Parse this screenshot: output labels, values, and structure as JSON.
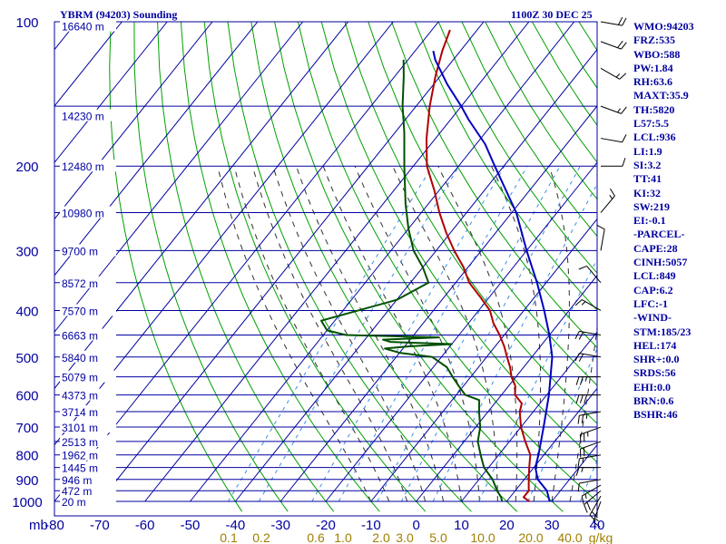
{
  "header": {
    "station": "YBRM (94203) Sounding",
    "time": "1100Z 30 DEC 25"
  },
  "colors": {
    "background": "#ffffff",
    "grid": "#0000a0",
    "dry_adiabat": "#00a000",
    "moist_adiabat": "#303030",
    "mixing_ratio": "#3a8ee6",
    "temperature": "#b00000",
    "dewpoint": "#005000",
    "parcel": "#0000c0",
    "wind": "#000000"
  },
  "chart_data": {
    "type": "line",
    "title": "YBRM (94203) Sounding",
    "subtitle": "1100Z 30 DEC 25",
    "y_axis": {
      "label": "mb",
      "scale": "log",
      "range": [
        1000,
        100
      ],
      "ticks": [
        100,
        200,
        300,
        400,
        500,
        600,
        700,
        800,
        900,
        1000
      ]
    },
    "x_axis": {
      "label": "",
      "range": [
        -80,
        40
      ],
      "skew": true,
      "ticks": [
        -80,
        -70,
        -60,
        -50,
        -40,
        -30,
        -20,
        -10,
        0,
        10,
        20,
        30,
        40
      ]
    },
    "mixing_ratio_labels": [
      "0.1",
      "0.2",
      "0.6",
      "1.0",
      "2.0",
      "3.0",
      "5.0",
      "10.0",
      "20.0",
      "40.0",
      "g/kg"
    ],
    "height_labels": [
      {
        "p": 102,
        "label": "16640 m"
      },
      {
        "p": 157,
        "label": "14230 m"
      },
      {
        "p": 200,
        "label": "12480 m"
      },
      {
        "p": 250,
        "label": "10980 m"
      },
      {
        "p": 300,
        "label": "9700 m"
      },
      {
        "p": 350,
        "label": "8572 m"
      },
      {
        "p": 400,
        "label": "7570 m"
      },
      {
        "p": 450,
        "label": "6663 m"
      },
      {
        "p": 500,
        "label": "5840 m"
      },
      {
        "p": 550,
        "label": "5079 m"
      },
      {
        "p": 600,
        "label": "4373 m"
      },
      {
        "p": 650,
        "label": "3714 m"
      },
      {
        "p": 700,
        "label": "3101 m"
      },
      {
        "p": 750,
        "label": "2513 m"
      },
      {
        "p": 800,
        "label": "1962 m"
      },
      {
        "p": 850,
        "label": "1445 m"
      },
      {
        "p": 900,
        "label": "946 m"
      },
      {
        "p": 950,
        "label": "472 m"
      },
      {
        "p": 1000,
        "label": "20 m"
      }
    ],
    "series": [
      {
        "name": "temperature",
        "color": "#b00000",
        "points": [
          [
            1000,
            25
          ],
          [
            980,
            23
          ],
          [
            950,
            23
          ],
          [
            925,
            22
          ],
          [
            900,
            21
          ],
          [
            875,
            20
          ],
          [
            850,
            19
          ],
          [
            825,
            18
          ],
          [
            800,
            17
          ],
          [
            750,
            13.5
          ],
          [
            700,
            10
          ],
          [
            650,
            7
          ],
          [
            625,
            6
          ],
          [
            600,
            3
          ],
          [
            575,
            1.5
          ],
          [
            550,
            -1
          ],
          [
            525,
            -3
          ],
          [
            500,
            -5.5
          ],
          [
            475,
            -8
          ],
          [
            450,
            -11
          ],
          [
            425,
            -14.5
          ],
          [
            400,
            -17.5
          ],
          [
            375,
            -22
          ],
          [
            350,
            -27
          ],
          [
            325,
            -31
          ],
          [
            300,
            -36
          ],
          [
            275,
            -41
          ],
          [
            250,
            -46
          ],
          [
            225,
            -51
          ],
          [
            200,
            -57
          ],
          [
            175,
            -62
          ],
          [
            150,
            -67
          ],
          [
            130,
            -71
          ],
          [
            115,
            -74
          ],
          [
            104,
            -76
          ]
        ]
      },
      {
        "name": "dewpoint",
        "color": "#005000",
        "points": [
          [
            1000,
            19
          ],
          [
            980,
            18
          ],
          [
            950,
            16
          ],
          [
            900,
            13
          ],
          [
            850,
            9
          ],
          [
            800,
            6
          ],
          [
            750,
            3
          ],
          [
            700,
            1
          ],
          [
            650,
            -2
          ],
          [
            615,
            -4
          ],
          [
            600,
            -8
          ],
          [
            575,
            -11
          ],
          [
            550,
            -14
          ],
          [
            525,
            -17
          ],
          [
            500,
            -22
          ],
          [
            490,
            -30
          ],
          [
            480,
            -34
          ],
          [
            475,
            -29
          ],
          [
            470,
            -20
          ],
          [
            465,
            -34
          ],
          [
            460,
            -36
          ],
          [
            455,
            -24
          ],
          [
            450,
            -45
          ],
          [
            440,
            -50
          ],
          [
            420,
            -53
          ],
          [
            380,
            -40
          ],
          [
            350,
            -36
          ],
          [
            325,
            -40
          ],
          [
            300,
            -45
          ],
          [
            270,
            -50
          ],
          [
            240,
            -55
          ],
          [
            200,
            -62
          ],
          [
            170,
            -68
          ],
          [
            150,
            -73
          ],
          [
            130,
            -78
          ],
          [
            120,
            -81
          ]
        ]
      },
      {
        "name": "parcel",
        "color": "#0000c0",
        "points": [
          [
            1000,
            29.5
          ],
          [
            950,
            27
          ],
          [
            900,
            23
          ],
          [
            849,
            20.3
          ],
          [
            800,
            18.8
          ],
          [
            700,
            15
          ],
          [
            600,
            10.5
          ],
          [
            500,
            4.5
          ],
          [
            450,
            0
          ],
          [
            400,
            -5.5
          ],
          [
            350,
            -12
          ],
          [
            300,
            -20
          ],
          [
            250,
            -29
          ],
          [
            200,
            -42
          ],
          [
            180,
            -48
          ],
          [
            160,
            -56
          ],
          [
            150,
            -60
          ],
          [
            135,
            -67
          ],
          [
            120,
            -74
          ],
          [
            115,
            -76
          ]
        ]
      }
    ],
    "wind_barbs": [
      {
        "p": 1000,
        "dir": 200,
        "spd": 15
      },
      {
        "p": 975,
        "dir": 210,
        "spd": 20
      },
      {
        "p": 950,
        "dir": 230,
        "spd": 20
      },
      {
        "p": 925,
        "dir": 240,
        "spd": 15
      },
      {
        "p": 900,
        "dir": 260,
        "spd": 10
      },
      {
        "p": 850,
        "dir": 270,
        "spd": 15
      },
      {
        "p": 800,
        "dir": 260,
        "spd": 15
      },
      {
        "p": 750,
        "dir": 250,
        "spd": 20
      },
      {
        "p": 700,
        "dir": 250,
        "spd": 25
      },
      {
        "p": 650,
        "dir": 260,
        "spd": 25
      },
      {
        "p": 600,
        "dir": 270,
        "spd": 30
      },
      {
        "p": 550,
        "dir": 270,
        "spd": 25
      },
      {
        "p": 500,
        "dir": 280,
        "spd": 20
      },
      {
        "p": 450,
        "dir": 280,
        "spd": 20
      },
      {
        "p": 400,
        "dir": 300,
        "spd": 15
      },
      {
        "p": 350,
        "dir": 320,
        "spd": 10
      },
      {
        "p": 300,
        "dir": 10,
        "spd": 10
      },
      {
        "p": 250,
        "dir": 40,
        "spd": 15
      },
      {
        "p": 200,
        "dir": 90,
        "spd": 10
      },
      {
        "p": 175,
        "dir": 100,
        "spd": 10
      },
      {
        "p": 150,
        "dir": 110,
        "spd": 15
      },
      {
        "p": 125,
        "dir": 120,
        "spd": 15
      },
      {
        "p": 110,
        "dir": 110,
        "spd": 20
      },
      {
        "p": 100,
        "dir": 100,
        "spd": 20
      }
    ]
  },
  "indices": [
    "WMO:94203",
    "FRZ:535",
    "WBO:588",
    "PW:1.84",
    "RH:63.6",
    "MAXT:35.9",
    "TH:5820",
    "L57:5.5",
    "LCL:936",
    "LI:1.9",
    "SI:3.2",
    "TT:41",
    "KI:32",
    "SW:219",
    "EI:-0.1",
    "-PARCEL-",
    "CAPE:28",
    "CINH:5057",
    "LCL:849",
    "CAP:6.2",
    "LFC:-1",
    "-WIND-",
    "STM:185/23",
    "HEL:174",
    "SHR+:0.0",
    "SRDS:56",
    "EHI:0.0",
    "BRN:0.6",
    "BSHR:46"
  ]
}
